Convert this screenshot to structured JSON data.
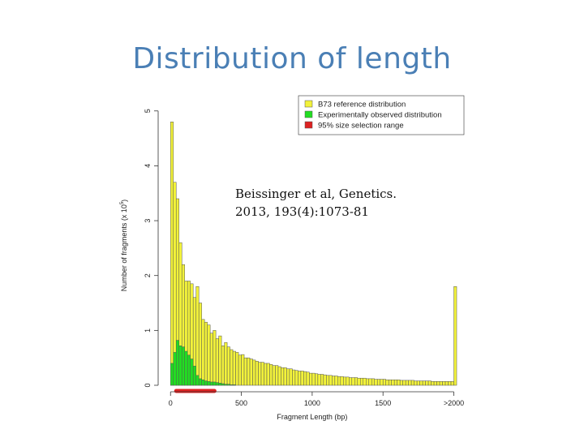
{
  "slide": {
    "title": "Distribution of length",
    "citation_line1": "Beissinger et al, Genetics.",
    "citation_line2": "2013, 193(4):1073-81"
  },
  "chart_data": {
    "type": "bar",
    "xlabel": "Fragment Length (bp)",
    "ylabel": "Number of fragments (x 10",
    "ylabel_exp": "5",
    "ylabel_tail": ")",
    "x_ticks": [
      {
        "value": 0,
        "label": "0"
      },
      {
        "value": 500,
        "label": "500"
      },
      {
        "value": 1000,
        "label": "1000"
      },
      {
        "value": 1500,
        "label": "1500"
      },
      {
        "value": 2000,
        "label": ">2000"
      }
    ],
    "y_ticks": [
      {
        "value": 0,
        "label": "0"
      },
      {
        "value": 1,
        "label": "1"
      },
      {
        "value": 2,
        "label": "2"
      },
      {
        "value": 3,
        "label": "3"
      },
      {
        "value": 4,
        "label": "4"
      },
      {
        "value": 5,
        "label": "5"
      }
    ],
    "xlim": [
      -30,
      2060
    ],
    "ylim": [
      0,
      5.1
    ],
    "bin_width": 20,
    "bin_starts": [
      0,
      20,
      40,
      60,
      80,
      100,
      120,
      140,
      160,
      180,
      200,
      220,
      240,
      260,
      280,
      300,
      320,
      340,
      360,
      380,
      400,
      420,
      440,
      460,
      480,
      500,
      520,
      540,
      560,
      580,
      600,
      620,
      640,
      660,
      680,
      700,
      720,
      740,
      760,
      780,
      800,
      820,
      840,
      860,
      880,
      900,
      920,
      940,
      960,
      980,
      1000,
      1020,
      1040,
      1060,
      1080,
      1100,
      1120,
      1140,
      1160,
      1180,
      1200,
      1220,
      1240,
      1260,
      1280,
      1300,
      1320,
      1340,
      1360,
      1380,
      1400,
      1420,
      1440,
      1460,
      1480,
      1500,
      1520,
      1540,
      1560,
      1580,
      1600,
      1620,
      1640,
      1660,
      1680,
      1700,
      1720,
      1740,
      1760,
      1780,
      1800,
      1820,
      1840,
      1860,
      1880,
      1900,
      1920,
      1940,
      1960,
      1980,
      2000
    ],
    "series": [
      {
        "name": "B73 reference distribution",
        "color": "#f2f23a",
        "values": [
          4.8,
          3.7,
          3.4,
          2.6,
          2.2,
          1.9,
          1.9,
          1.85,
          1.6,
          1.8,
          1.5,
          1.2,
          1.15,
          1.1,
          0.95,
          1.0,
          0.85,
          0.9,
          0.72,
          0.78,
          0.7,
          0.65,
          0.62,
          0.6,
          0.55,
          0.56,
          0.5,
          0.5,
          0.48,
          0.46,
          0.44,
          0.42,
          0.42,
          0.4,
          0.4,
          0.38,
          0.36,
          0.36,
          0.34,
          0.32,
          0.32,
          0.3,
          0.3,
          0.28,
          0.27,
          0.26,
          0.26,
          0.25,
          0.24,
          0.22,
          0.22,
          0.21,
          0.2,
          0.2,
          0.19,
          0.18,
          0.18,
          0.17,
          0.17,
          0.16,
          0.16,
          0.15,
          0.15,
          0.14,
          0.14,
          0.14,
          0.13,
          0.13,
          0.13,
          0.12,
          0.12,
          0.12,
          0.11,
          0.11,
          0.11,
          0.11,
          0.1,
          0.1,
          0.1,
          0.1,
          0.1,
          0.09,
          0.09,
          0.09,
          0.09,
          0.09,
          0.08,
          0.08,
          0.08,
          0.08,
          0.08,
          0.08,
          0.07,
          0.07,
          0.07,
          0.07,
          0.07,
          0.07,
          0.07,
          0.07,
          1.8
        ]
      },
      {
        "name": "Experimentally observed distribution",
        "color": "#22dd22",
        "values": [
          0.4,
          0.6,
          0.82,
          0.72,
          0.7,
          0.62,
          0.55,
          0.48,
          0.35,
          0.18,
          0.12,
          0.1,
          0.08,
          0.07,
          0.06,
          0.06,
          0.05,
          0.04,
          0.03,
          0.02,
          0.02,
          0.01,
          0.01,
          0,
          0,
          0,
          0,
          0,
          0,
          0,
          0,
          0,
          0,
          0,
          0,
          0,
          0,
          0,
          0,
          0,
          0,
          0,
          0,
          0,
          0,
          0,
          0,
          0,
          0,
          0,
          0,
          0,
          0,
          0,
          0,
          0,
          0,
          0,
          0,
          0,
          0,
          0,
          0,
          0,
          0,
          0,
          0,
          0,
          0,
          0,
          0,
          0,
          0,
          0,
          0,
          0,
          0,
          0,
          0,
          0,
          0,
          0,
          0,
          0,
          0,
          0,
          0,
          0,
          0,
          0,
          0,
          0,
          0,
          0,
          0,
          0,
          0,
          0,
          0,
          0,
          0
        ]
      }
    ],
    "range": {
      "name": "95% size selection range",
      "color": "#dd2222",
      "start": 40,
      "end": 310
    },
    "legend_position": "top-right",
    "grid": false
  }
}
